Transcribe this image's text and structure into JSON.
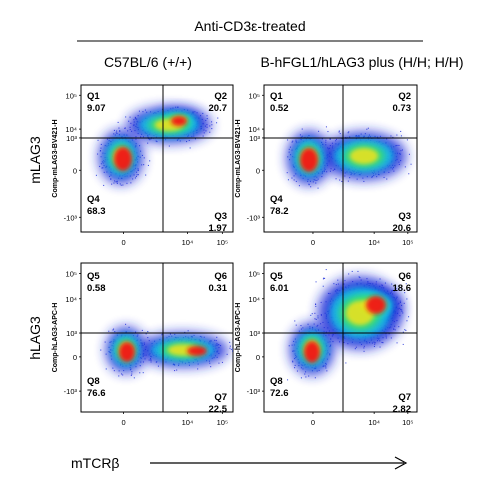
{
  "header": {
    "treatment": "Anti-CD3ε-treated",
    "col_left": "C57BL/6 (+/+)",
    "col_right": "B-hFGL1/hLAG3 plus (H/H; H/H)"
  },
  "rows": {
    "top": "mLAG3",
    "bottom": "hLAG3"
  },
  "xaxis": {
    "label": "mTCRβ",
    "ticks": [
      "0",
      "10",
      "10",
      "10"
    ],
    "tick_exps": [
      "",
      "4",
      "5",
      ""
    ]
  },
  "colors": {
    "low": "#1a2bd8",
    "mid": "#19c8e6",
    "mid2": "#3ee06a",
    "high": "#f2e21a",
    "peak": "#f01818"
  },
  "chart_data": [
    {
      "type": "scatter",
      "panel": "top-left",
      "ylabel": "Comp-mLAG3-BV421-H",
      "y_ticks": [
        "10⁵",
        "10⁴",
        "10³",
        "0",
        "-10³"
      ],
      "x_ticks": [
        "0",
        "10⁴",
        "10⁵"
      ],
      "quadrants": [
        {
          "name": "Q1",
          "value": "9.07"
        },
        {
          "name": "Q2",
          "value": "20.7"
        },
        {
          "name": "Q4",
          "value": "68.3"
        },
        {
          "name": "Q3",
          "value": "1.97"
        }
      ]
    },
    {
      "type": "scatter",
      "panel": "top-right",
      "ylabel": "Comp-mLAG3-BV421-H",
      "y_ticks": [
        "10⁵",
        "10⁴",
        "10³",
        "0",
        "-10³"
      ],
      "x_ticks": [
        "0",
        "10⁴",
        "10⁵"
      ],
      "quadrants": [
        {
          "name": "Q1",
          "value": "0.52"
        },
        {
          "name": "Q2",
          "value": "0.73"
        },
        {
          "name": "Q4",
          "value": "78.2"
        },
        {
          "name": "Q3",
          "value": "20.6"
        }
      ]
    },
    {
      "type": "scatter",
      "panel": "bottom-left",
      "ylabel": "Comp-hLAG3-APC-H",
      "y_ticks": [
        "10⁵",
        "10⁴",
        "10³",
        "0",
        "-10³"
      ],
      "x_ticks": [
        "0",
        "10⁴",
        "10⁵"
      ],
      "quadrants": [
        {
          "name": "Q5",
          "value": "0.58"
        },
        {
          "name": "Q6",
          "value": "0.31"
        },
        {
          "name": "Q8",
          "value": "76.6"
        },
        {
          "name": "Q7",
          "value": "22.5"
        }
      ]
    },
    {
      "type": "scatter",
      "panel": "bottom-right",
      "ylabel": "Comp-hLAG3-APC-H",
      "y_ticks": [
        "10⁵",
        "10⁴",
        "10³",
        "0",
        "-10³"
      ],
      "x_ticks": [
        "0",
        "10⁴",
        "10⁵"
      ],
      "quadrants": [
        {
          "name": "Q5",
          "value": "6.01"
        },
        {
          "name": "Q6",
          "value": "18.6"
        },
        {
          "name": "Q8",
          "value": "72.6"
        },
        {
          "name": "Q7",
          "value": "2.82"
        }
      ]
    }
  ]
}
